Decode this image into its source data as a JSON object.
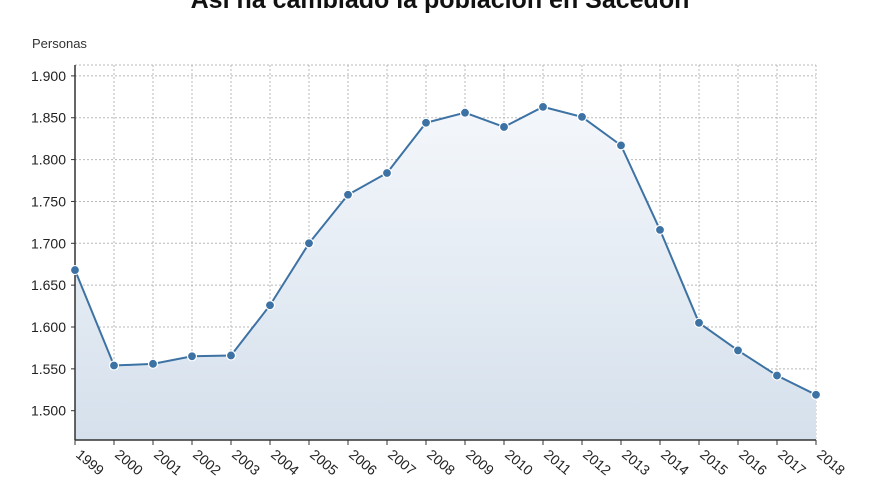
{
  "title": "Así ha cambiado la población en Sacedón",
  "chart_data": {
    "type": "area",
    "title": "Así ha cambiado la población en Sacedón",
    "ylabel": "Personas",
    "xlabel": "",
    "categories": [
      "1999",
      "2000",
      "2001",
      "2002",
      "2003",
      "2004",
      "2005",
      "2006",
      "2007",
      "2008",
      "2009",
      "2010",
      "2011",
      "2012",
      "2013",
      "2014",
      "2015",
      "2016",
      "2017",
      "2018"
    ],
    "values": [
      1668,
      1554,
      1556,
      1565,
      1566,
      1626,
      1700,
      1758,
      1784,
      1844,
      1856,
      1839,
      1863,
      1851,
      1817,
      1716,
      1605,
      1572,
      1542,
      1519
    ],
    "ylim": [
      1465,
      1913
    ],
    "yticks": [
      1500,
      1550,
      1600,
      1650,
      1700,
      1750,
      1800,
      1850,
      1900
    ],
    "ytick_labels": [
      "1.500",
      "1.550",
      "1.600",
      "1.650",
      "1.700",
      "1.750",
      "1.800",
      "1.850",
      "1.900"
    ],
    "grid": true,
    "colors": {
      "line": "#3d72a4",
      "marker": "#3d72a4",
      "area_top": "#f4f7fb",
      "area_bottom": "#d5e0ec",
      "grid": "#b9b9b9",
      "axis": "#333333"
    }
  }
}
